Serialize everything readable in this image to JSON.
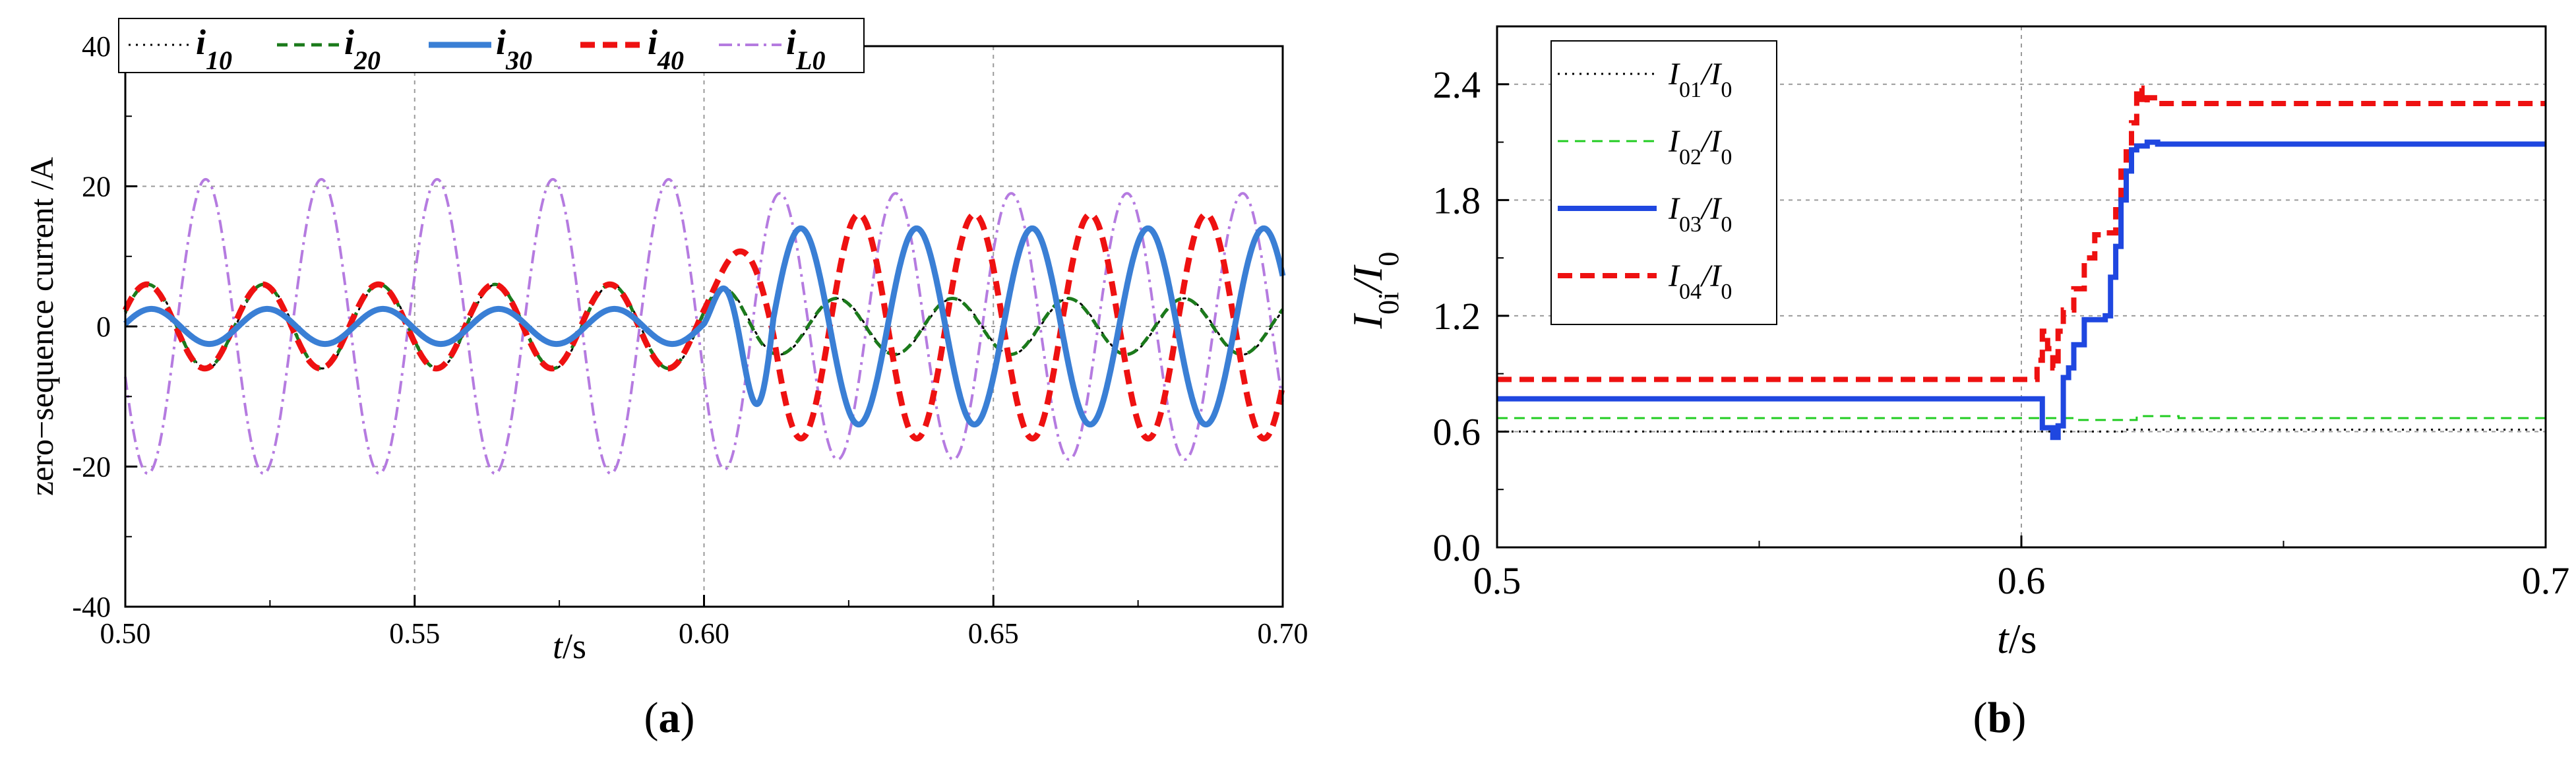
{
  "chart_data": [
    {
      "panel": "a",
      "type": "line",
      "caption_letter": "a",
      "xlabel_italic": "t",
      "xlabel_suffix": "/s",
      "ylabel": "zero−sequence current /A",
      "xlim": [
        0.5,
        0.7
      ],
      "ylim": [
        -40,
        40
      ],
      "xticks": [
        "0.50",
        "0.55",
        "0.60",
        "0.65",
        "0.70"
      ],
      "yticks": [
        "-40",
        "-20",
        "0",
        "20",
        "40"
      ],
      "grid": true,
      "legend_position": "above-top",
      "frequency_hz": 50,
      "fault_time": 0.6,
      "series": [
        {
          "name": "i10",
          "label_base": "i",
          "label_sub": "10",
          "color": "#000000",
          "style": "dotted",
          "pre_amplitude": 6,
          "post_amplitude": 4
        },
        {
          "name": "i20",
          "label_base": "i",
          "label_sub": "20",
          "color": "#1b7a1b",
          "style": "dashed",
          "pre_amplitude": 6,
          "post_amplitude": 4
        },
        {
          "name": "i30",
          "label_base": "i",
          "label_sub": "30",
          "color": "#3a7fd5",
          "style": "solid",
          "pre_amplitude": 2.5,
          "post_amplitude": 14
        },
        {
          "name": "i40",
          "label_base": "i",
          "label_sub": "40",
          "color": "#ee1111",
          "style": "dashed",
          "pre_amplitude": 6,
          "post_amplitude": 16
        },
        {
          "name": "iL0",
          "label_base": "i",
          "label_sub": "L0",
          "color": "#b57be0",
          "style": "dashdot",
          "pre_amplitude": 21,
          "post_amplitude": 19
        }
      ]
    },
    {
      "panel": "b",
      "type": "line",
      "caption_letter": "b",
      "xlabel_italic": "t",
      "xlabel_suffix": "/s",
      "ylabel_base": "I",
      "ylabel_sub1": "0i",
      "ylabel_mid": "/I",
      "ylabel_sub2": "0",
      "xlim": [
        0.5,
        0.7
      ],
      "ylim": [
        0.0,
        2.7
      ],
      "xticks": [
        "0.5",
        "0.6",
        "0.7"
      ],
      "yticks": [
        "0.0",
        "0.6",
        "1.2",
        "1.8",
        "2.4"
      ],
      "grid": true,
      "legend_position": "top-left",
      "series": [
        {
          "name": "I01/I0",
          "label_sub": "01",
          "color": "#000000",
          "style": "dotted",
          "x": [
            0.5,
            0.6,
            0.61,
            0.62,
            0.63,
            0.64,
            0.7
          ],
          "y": [
            0.6,
            0.6,
            0.6,
            0.61,
            0.61,
            0.61,
            0.61
          ]
        },
        {
          "name": "I02/I0",
          "label_sub": "02",
          "color": "#22cc22",
          "style": "dashed",
          "x": [
            0.5,
            0.6,
            0.61,
            0.62,
            0.622,
            0.63,
            0.7
          ],
          "y": [
            0.67,
            0.67,
            0.66,
            0.66,
            0.68,
            0.67,
            0.67
          ]
        },
        {
          "name": "I03/I0",
          "label_sub": "03",
          "color": "#1f47e0",
          "style": "solid",
          "x": [
            0.5,
            0.603,
            0.604,
            0.606,
            0.607,
            0.608,
            0.609,
            0.61,
            0.612,
            0.614,
            0.616,
            0.617,
            0.618,
            0.619,
            0.62,
            0.621,
            0.622,
            0.624,
            0.626,
            0.628,
            0.7
          ],
          "y": [
            0.77,
            0.77,
            0.62,
            0.57,
            0.63,
            0.88,
            0.93,
            1.05,
            1.18,
            1.18,
            1.2,
            1.4,
            1.56,
            1.8,
            1.95,
            2.06,
            2.08,
            2.1,
            2.09,
            2.09,
            2.09
          ]
        },
        {
          "name": "I04/I0",
          "label_sub": "04",
          "color": "#ee1111",
          "style": "dashed",
          "x": [
            0.5,
            0.602,
            0.603,
            0.604,
            0.605,
            0.606,
            0.607,
            0.608,
            0.61,
            0.612,
            0.614,
            0.616,
            0.618,
            0.619,
            0.62,
            0.621,
            0.622,
            0.623,
            0.624,
            0.626,
            0.628,
            0.7
          ],
          "y": [
            0.87,
            0.87,
            0.97,
            1.12,
            1.03,
            0.93,
            1.12,
            1.23,
            1.34,
            1.5,
            1.62,
            1.63,
            1.75,
            1.95,
            2.05,
            2.2,
            2.38,
            2.3,
            2.33,
            2.3,
            2.3,
            2.3
          ]
        }
      ]
    }
  ]
}
